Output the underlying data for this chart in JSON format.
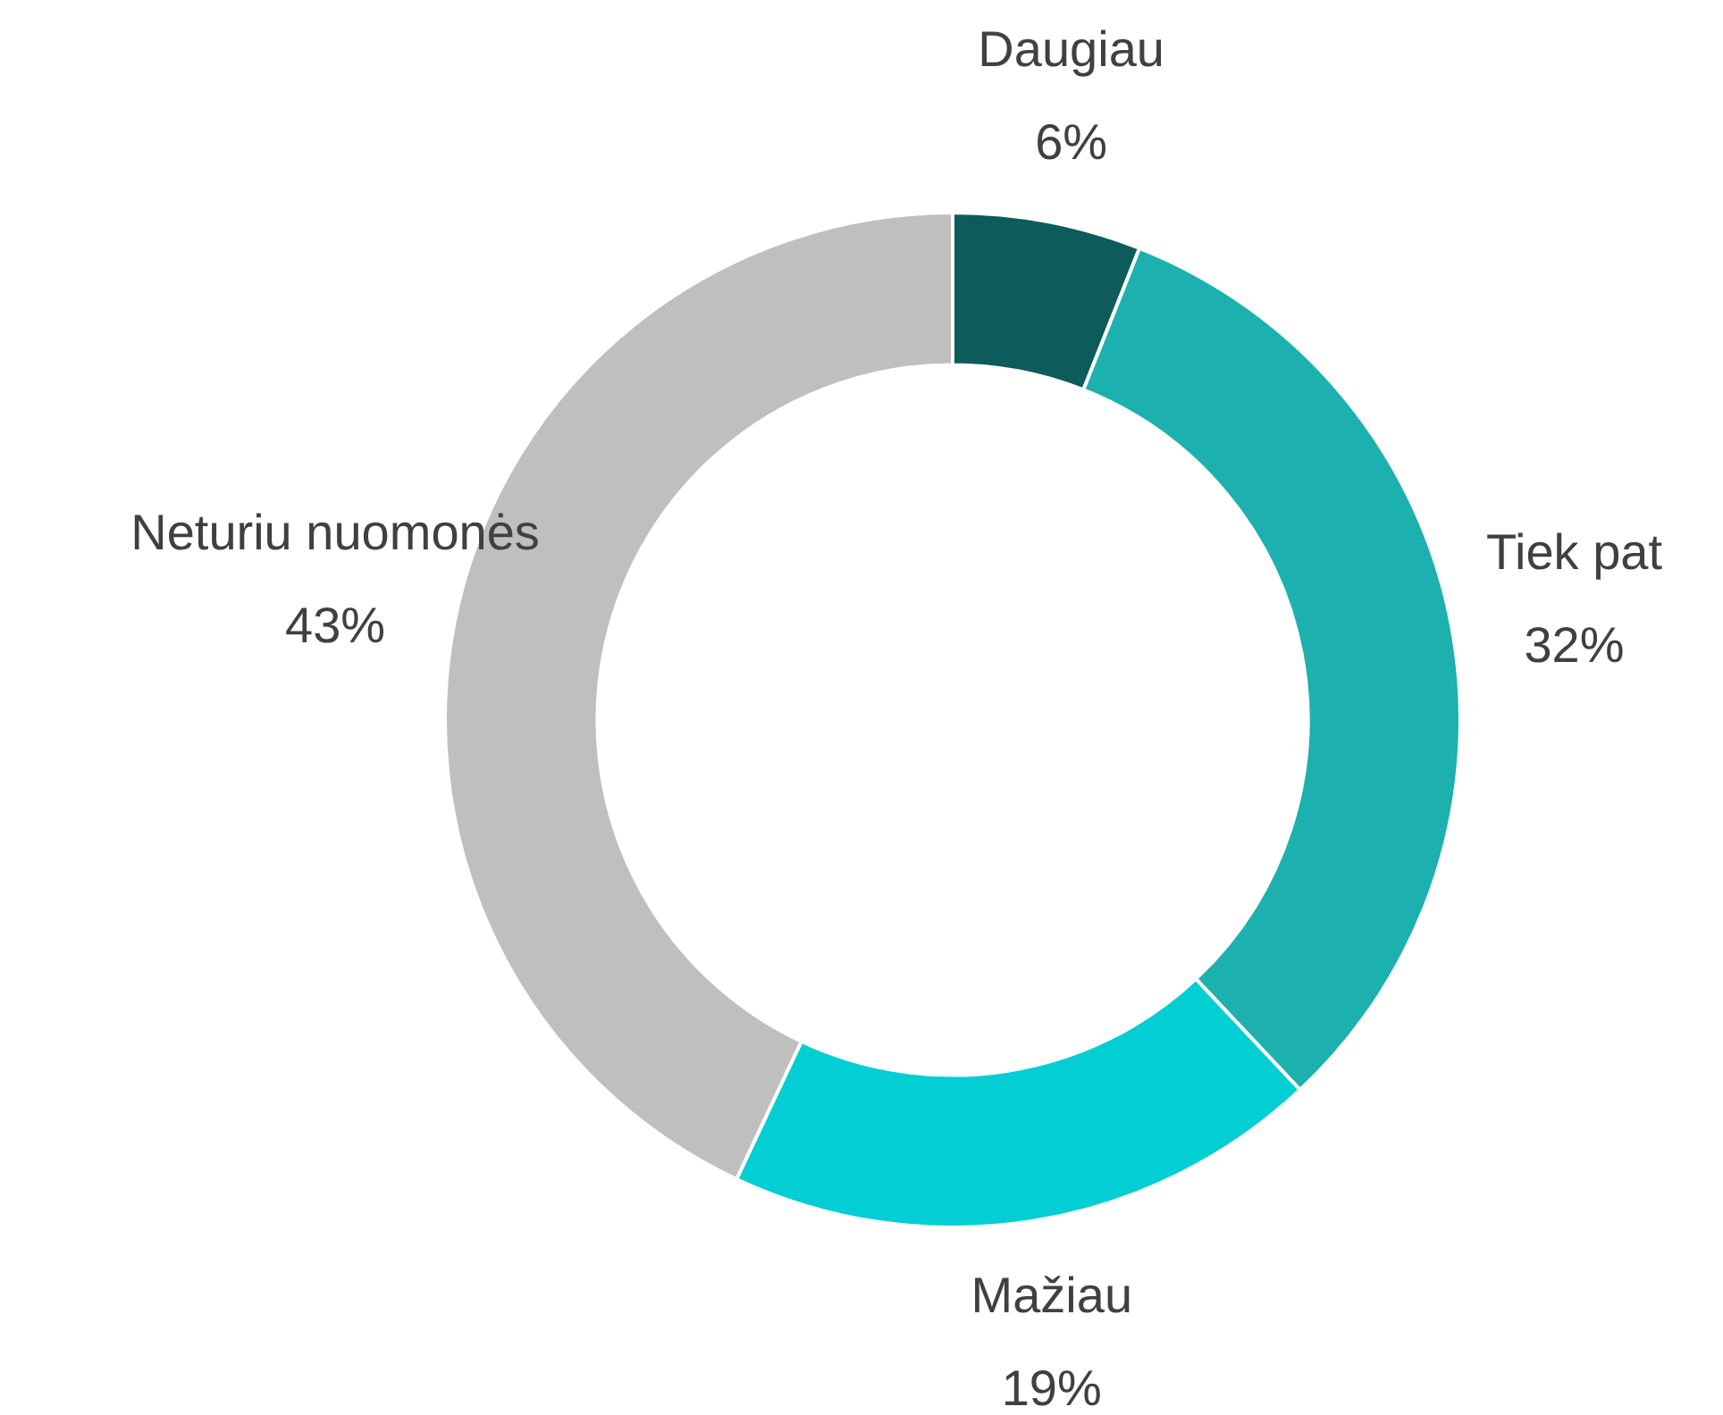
{
  "chart_data": {
    "type": "donut",
    "categories": [
      "Daugiau",
      "Tiek pat",
      "Mažiau",
      "Neturiu nuomonės"
    ],
    "values": [
      6,
      32,
      19,
      43
    ],
    "value_labels": [
      "6%",
      "32%",
      "19%",
      "43%"
    ],
    "colors": [
      "#0e5b5b",
      "#1cb1ae",
      "#03ced3",
      "#bfbfbf"
    ],
    "legend": false
  }
}
